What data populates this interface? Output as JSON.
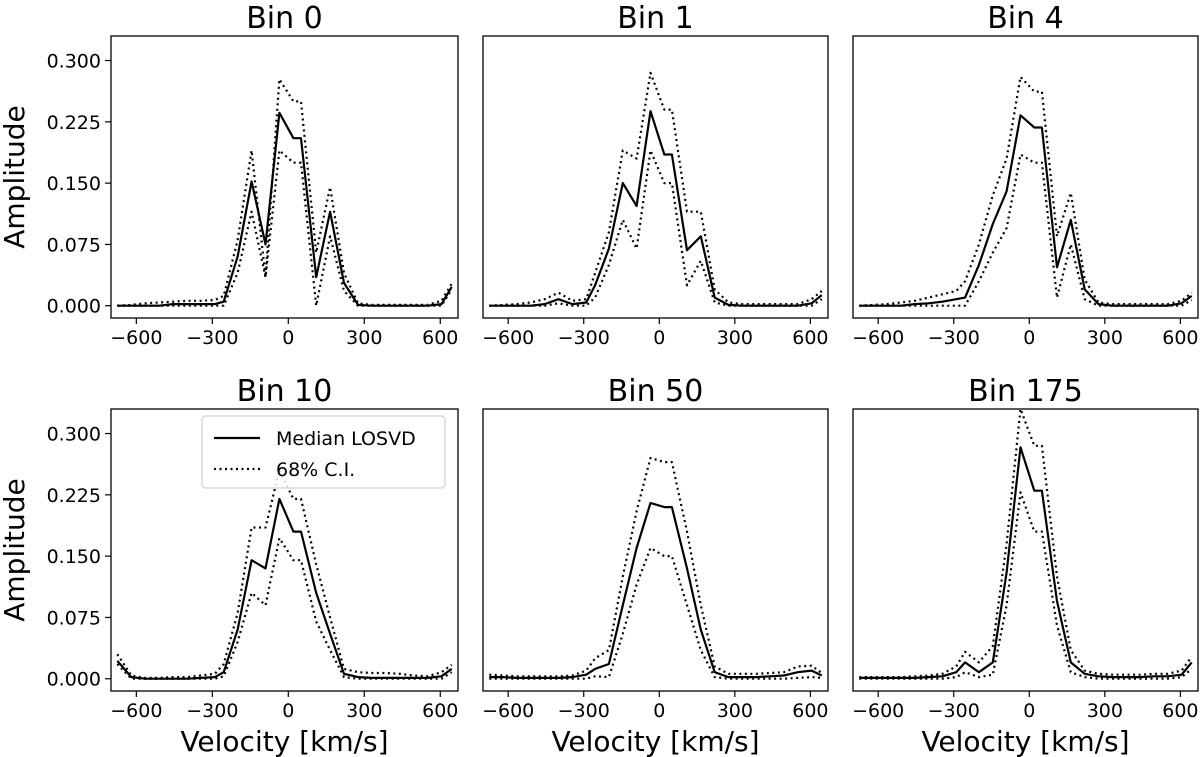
{
  "chart_data": [
    {
      "type": "line",
      "title": "Bin 0",
      "xlabel": "",
      "ylabel": "Amplitude",
      "xlim": [
        -700,
        670
      ],
      "ylim": [
        -0.015,
        0.33
      ],
      "xticks": [
        -600,
        -300,
        0,
        300,
        600
      ],
      "yticks": [
        0.0,
        0.075,
        0.15,
        0.225,
        0.3
      ],
      "xtick_labels": [
        "−600",
        "−300",
        "0",
        "300",
        "600"
      ],
      "ytick_labels": [
        "0.000",
        "0.075",
        "0.150",
        "0.225",
        "0.300"
      ],
      "x": [
        -675,
        -620,
        -565,
        -510,
        -455,
        -400,
        -345,
        -290,
        -255,
        -200,
        -145,
        -90,
        -35,
        20,
        50,
        110,
        165,
        220,
        275,
        330,
        385,
        440,
        495,
        550,
        605,
        645
      ],
      "series": [
        {
          "style": "solid",
          "values": [
            0,
            0,
            0,
            0,
            0.002,
            0.002,
            0.002,
            0.002,
            0.005,
            0.06,
            0.152,
            0.075,
            0.236,
            0.205,
            0.205,
            0.035,
            0.115,
            0.028,
            0.001,
            0,
            0,
            0,
            0,
            0,
            0.002,
            0.023
          ]
        },
        {
          "style": "dotted",
          "values": [
            0,
            0.001,
            0.003,
            0.004,
            0.005,
            0.006,
            0.006,
            0.007,
            0.012,
            0.08,
            0.19,
            0.035,
            0.277,
            0.25,
            0.25,
            0.065,
            0.145,
            0.04,
            0.003,
            0.001,
            0.001,
            0.001,
            0.001,
            0.001,
            0.006,
            0.027
          ]
        },
        {
          "style": "dotted",
          "values": [
            0,
            0,
            0,
            0,
            0,
            0,
            0,
            0,
            0,
            0.04,
            0.115,
            0.035,
            0.19,
            0.175,
            0.175,
            0,
            0.085,
            0.018,
            0,
            0,
            0,
            0,
            0,
            0,
            0,
            0.02
          ]
        }
      ]
    },
    {
      "type": "line",
      "title": "Bin 1",
      "xlabel": "",
      "ylabel": "",
      "xlim": [
        -700,
        670
      ],
      "ylim": [
        -0.015,
        0.33
      ],
      "xticks": [
        -600,
        -300,
        0,
        300,
        600
      ],
      "yticks": [],
      "xtick_labels": [
        "−600",
        "−300",
        "0",
        "300",
        "600"
      ],
      "ytick_labels": [],
      "x": [
        -675,
        -620,
        -565,
        -510,
        -455,
        -400,
        -345,
        -290,
        -255,
        -200,
        -145,
        -90,
        -35,
        20,
        50,
        110,
        165,
        220,
        275,
        330,
        385,
        440,
        495,
        550,
        605,
        645
      ],
      "series": [
        {
          "style": "solid",
          "values": [
            0,
            0,
            0,
            0,
            0.002,
            0.008,
            0.002,
            0.004,
            0.025,
            0.07,
            0.15,
            0.122,
            0.238,
            0.185,
            0.185,
            0.068,
            0.085,
            0.01,
            0.001,
            0,
            0,
            0,
            0,
            0,
            0.003,
            0.013
          ]
        },
        {
          "style": "dotted",
          "values": [
            0,
            0.001,
            0.002,
            0.004,
            0.008,
            0.016,
            0.006,
            0.008,
            0.04,
            0.09,
            0.19,
            0.18,
            0.285,
            0.24,
            0.24,
            0.115,
            0.115,
            0.02,
            0.004,
            0.002,
            0.002,
            0.002,
            0.002,
            0.002,
            0.008,
            0.018
          ]
        },
        {
          "style": "dotted",
          "values": [
            0,
            0,
            0,
            0,
            0,
            0.003,
            0,
            0,
            0.01,
            0.05,
            0.105,
            0.07,
            0.19,
            0.15,
            0.15,
            0.025,
            0.055,
            0.004,
            0,
            0,
            0,
            0,
            0,
            0,
            0,
            0.008
          ]
        }
      ]
    },
    {
      "type": "line",
      "title": "Bin 4",
      "xlabel": "",
      "ylabel": "",
      "xlim": [
        -700,
        670
      ],
      "ylim": [
        -0.015,
        0.33
      ],
      "xticks": [
        -600,
        -300,
        0,
        300,
        600
      ],
      "yticks": [],
      "xtick_labels": [
        "−600",
        "−300",
        "0",
        "300",
        "600"
      ],
      "ytick_labels": [],
      "x": [
        -675,
        -620,
        -565,
        -510,
        -455,
        -400,
        -345,
        -290,
        -255,
        -200,
        -145,
        -90,
        -35,
        20,
        50,
        110,
        165,
        220,
        275,
        330,
        385,
        440,
        495,
        550,
        605,
        645
      ],
      "series": [
        {
          "style": "solid",
          "values": [
            0,
            0,
            0,
            0,
            0.002,
            0.003,
            0.005,
            0.008,
            0.01,
            0.05,
            0.1,
            0.14,
            0.233,
            0.218,
            0.218,
            0.047,
            0.105,
            0.02,
            0.002,
            0,
            0,
            0,
            0,
            0,
            0.003,
            0.012
          ]
        },
        {
          "style": "dotted",
          "values": [
            0,
            0.001,
            0.002,
            0.004,
            0.006,
            0.01,
            0.014,
            0.018,
            0.03,
            0.075,
            0.135,
            0.18,
            0.28,
            0.262,
            0.262,
            0.085,
            0.138,
            0.032,
            0.004,
            0.002,
            0.002,
            0.002,
            0.002,
            0.002,
            0.006,
            0.016
          ]
        },
        {
          "style": "dotted",
          "values": [
            0,
            0,
            0,
            0,
            0,
            0,
            0,
            0,
            0,
            0.03,
            0.065,
            0.095,
            0.185,
            0.175,
            0.175,
            0.01,
            0.075,
            0.008,
            0,
            0,
            0,
            0,
            0,
            0,
            0,
            0.007
          ]
        }
      ]
    },
    {
      "type": "line",
      "title": "Bin 10",
      "xlabel": "Velocity [km/s]",
      "ylabel": "Amplitude",
      "xlim": [
        -700,
        670
      ],
      "ylim": [
        -0.015,
        0.33
      ],
      "xticks": [
        -600,
        -300,
        0,
        300,
        600
      ],
      "yticks": [
        0.0,
        0.075,
        0.15,
        0.225,
        0.3
      ],
      "xtick_labels": [
        "−600",
        "−300",
        "0",
        "300",
        "600"
      ],
      "ytick_labels": [
        "0.000",
        "0.075",
        "0.150",
        "0.225",
        "0.300"
      ],
      "legend": {
        "placement": "upper right",
        "entries": [
          {
            "label": "Median LOSVD",
            "style": "solid"
          },
          {
            "label": "68% C.I.",
            "style": "dotted"
          }
        ]
      },
      "x": [
        -675,
        -620,
        -565,
        -510,
        -455,
        -400,
        -345,
        -290,
        -255,
        -200,
        -145,
        -90,
        -35,
        20,
        50,
        110,
        165,
        220,
        275,
        330,
        385,
        440,
        495,
        550,
        605,
        645
      ],
      "series": [
        {
          "style": "solid",
          "values": [
            0.022,
            0.002,
            0,
            0,
            0,
            0,
            0.001,
            0.002,
            0.008,
            0.06,
            0.145,
            0.135,
            0.22,
            0.18,
            0.18,
            0.105,
            0.055,
            0.006,
            0.002,
            0.001,
            0.001,
            0.001,
            0.001,
            0.001,
            0.003,
            0.012
          ]
        },
        {
          "style": "dotted",
          "values": [
            0.03,
            0.004,
            0.001,
            0.001,
            0.002,
            0.002,
            0.004,
            0.006,
            0.018,
            0.08,
            0.185,
            0.185,
            0.255,
            0.22,
            0.22,
            0.14,
            0.075,
            0.012,
            0.008,
            0.007,
            0.007,
            0.006,
            0.004,
            0.003,
            0.008,
            0.017
          ]
        },
        {
          "style": "dotted",
          "values": [
            0.018,
            0,
            0,
            0,
            0,
            0,
            0,
            0,
            0.003,
            0.045,
            0.105,
            0.09,
            0.172,
            0.145,
            0.145,
            0.07,
            0.035,
            0.002,
            0,
            0,
            0,
            0,
            0,
            0,
            0,
            0.008
          ]
        }
      ]
    },
    {
      "type": "line",
      "title": "Bin 50",
      "xlabel": "Velocity [km/s]",
      "ylabel": "",
      "xlim": [
        -700,
        670
      ],
      "ylim": [
        -0.015,
        0.33
      ],
      "xticks": [
        -600,
        -300,
        0,
        300,
        600
      ],
      "yticks": [],
      "xtick_labels": [
        "−600",
        "−300",
        "0",
        "300",
        "600"
      ],
      "ytick_labels": [],
      "x": [
        -675,
        -620,
        -565,
        -510,
        -455,
        -400,
        -345,
        -290,
        -255,
        -200,
        -145,
        -90,
        -35,
        20,
        50,
        110,
        165,
        220,
        275,
        330,
        385,
        440,
        495,
        550,
        605,
        645
      ],
      "series": [
        {
          "style": "solid",
          "values": [
            0.002,
            0.002,
            0.001,
            0.001,
            0.001,
            0.001,
            0.002,
            0.005,
            0.012,
            0.018,
            0.09,
            0.16,
            0.215,
            0.21,
            0.21,
            0.135,
            0.06,
            0.008,
            0.002,
            0.002,
            0.002,
            0.003,
            0.004,
            0.008,
            0.01,
            0.004
          ]
        },
        {
          "style": "dotted",
          "values": [
            0.005,
            0.004,
            0.003,
            0.003,
            0.003,
            0.003,
            0.004,
            0.01,
            0.025,
            0.035,
            0.125,
            0.205,
            0.27,
            0.265,
            0.265,
            0.18,
            0.09,
            0.015,
            0.006,
            0.006,
            0.006,
            0.007,
            0.008,
            0.015,
            0.016,
            0.007
          ]
        },
        {
          "style": "dotted",
          "values": [
            0,
            0,
            0,
            0,
            0,
            0,
            0,
            0,
            0.003,
            0.002,
            0.055,
            0.115,
            0.16,
            0.15,
            0.15,
            0.09,
            0.035,
            0.002,
            0,
            0,
            0,
            0,
            0,
            0.001,
            0.002,
            0.001
          ]
        }
      ]
    },
    {
      "type": "line",
      "title": "Bin 175",
      "xlabel": "Velocity [km/s]",
      "ylabel": "",
      "xlim": [
        -700,
        670
      ],
      "ylim": [
        -0.015,
        0.33
      ],
      "xticks": [
        -600,
        -300,
        0,
        300,
        600
      ],
      "yticks": [],
      "xtick_labels": [
        "−600",
        "−300",
        "0",
        "300",
        "600"
      ],
      "ytick_labels": [],
      "x": [
        -675,
        -620,
        -565,
        -510,
        -455,
        -400,
        -345,
        -290,
        -255,
        -200,
        -145,
        -90,
        -35,
        20,
        50,
        110,
        165,
        220,
        275,
        330,
        385,
        440,
        495,
        550,
        605,
        645
      ],
      "series": [
        {
          "style": "solid",
          "values": [
            0.001,
            0.001,
            0.001,
            0.001,
            0.001,
            0.002,
            0.003,
            0.008,
            0.02,
            0.008,
            0.02,
            0.13,
            0.283,
            0.23,
            0.23,
            0.095,
            0.02,
            0.006,
            0.003,
            0.002,
            0.002,
            0.002,
            0.003,
            0.003,
            0.005,
            0.02
          ]
        },
        {
          "style": "dotted",
          "values": [
            0.002,
            0.002,
            0.002,
            0.002,
            0.003,
            0.004,
            0.006,
            0.015,
            0.033,
            0.02,
            0.04,
            0.165,
            0.33,
            0.285,
            0.285,
            0.125,
            0.035,
            0.01,
            0.006,
            0.005,
            0.005,
            0.005,
            0.006,
            0.006,
            0.01,
            0.027
          ]
        },
        {
          "style": "dotted",
          "values": [
            0,
            0,
            0,
            0,
            0,
            0,
            0,
            0.002,
            0.008,
            0.002,
            0.005,
            0.09,
            0.228,
            0.18,
            0.18,
            0.065,
            0.008,
            0.002,
            0,
            0,
            0,
            0,
            0,
            0,
            0.002,
            0.012
          ]
        }
      ]
    }
  ]
}
